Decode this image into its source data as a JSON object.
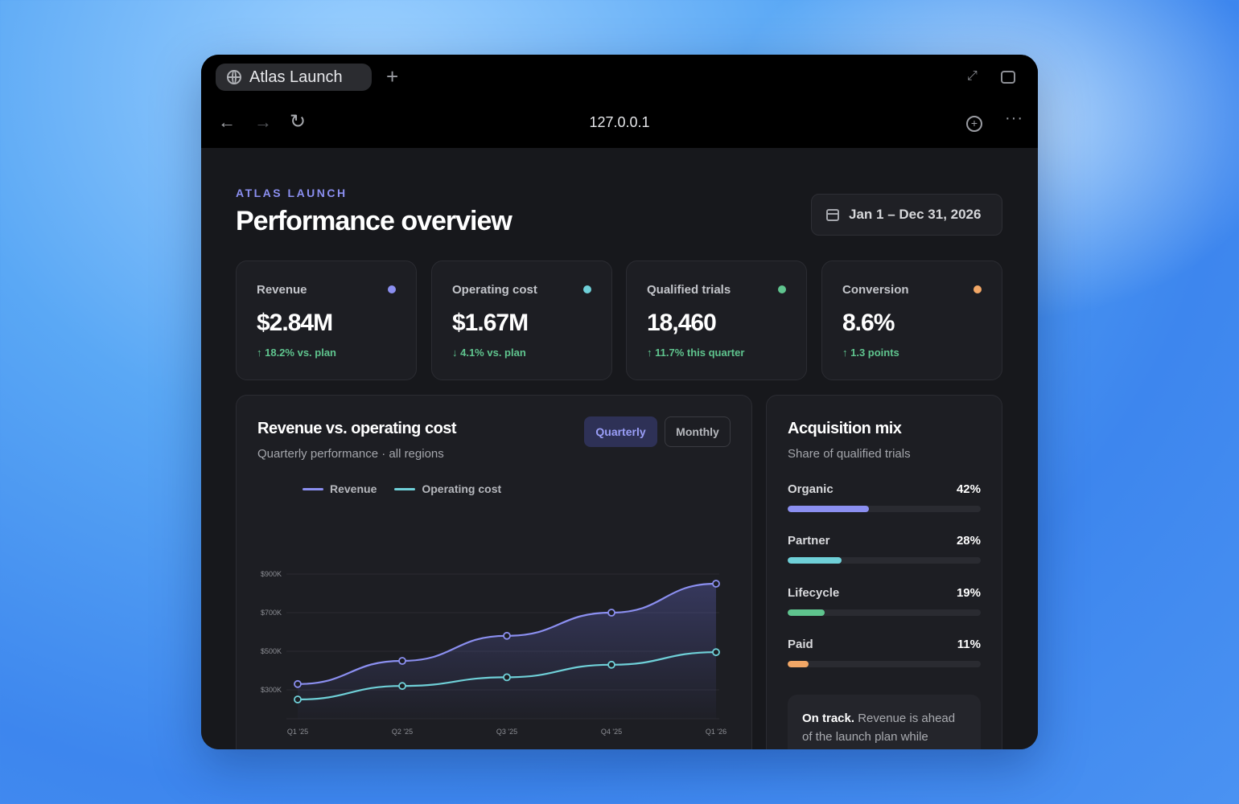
{
  "browser": {
    "tab_title": "Atlas Launch",
    "new_tab": "+",
    "url": "127.0.0.1"
  },
  "header": {
    "eyebrow": "ATLAS LAUNCH",
    "title": "Performance overview",
    "date_range": "Jan 1 – Dec 31, 2026"
  },
  "kpis": [
    {
      "label": "Revenue",
      "value": "$2.84M",
      "delta": "↑ 18.2% vs. plan",
      "color": "#8b8ff0"
    },
    {
      "label": "Operating cost",
      "value": "$1.67M",
      "delta": "↓ 4.1% vs. plan",
      "color": "#6fd0d8"
    },
    {
      "label": "Qualified trials",
      "value": "18,460",
      "delta": "↑ 11.7% this quarter",
      "color": "#5fc48e"
    },
    {
      "label": "Conversion",
      "value": "8.6%",
      "delta": "↑ 1.3 points",
      "color": "#f2a766"
    }
  ],
  "revenue_card": {
    "title": "Revenue vs. operating cost",
    "subtitle": "Quarterly performance · all regions",
    "toggle_quarterly": "Quarterly",
    "toggle_monthly": "Monthly",
    "legend_revenue": "Revenue",
    "legend_cost": "Operating cost"
  },
  "chart_data": {
    "type": "line",
    "categories": [
      "Q1 '25",
      "Q2 '25",
      "Q3 '25",
      "Q4 '25",
      "Q1 '26"
    ],
    "series": [
      {
        "name": "Revenue",
        "values": [
          330000,
          450000,
          580000,
          700000,
          850000
        ],
        "color": "#8b8ff0"
      },
      {
        "name": "Operating cost",
        "values": [
          250000,
          320000,
          365000,
          430000,
          495000
        ],
        "color": "#6fd0d8"
      }
    ],
    "y_ticks": [
      {
        "value": 900000,
        "label": "$900K"
      },
      {
        "value": 700000,
        "label": "$700K"
      },
      {
        "value": 500000,
        "label": "$500K"
      },
      {
        "value": 300000,
        "label": "$300K"
      }
    ],
    "ylim": [
      150000,
      900000
    ],
    "grid": true,
    "legend": "top-left"
  },
  "acquisition": {
    "title": "Acquisition mix",
    "subtitle": "Share of qualified trials",
    "items": [
      {
        "name": "Organic",
        "pct_label": "42%",
        "value": 42,
        "color": "#8b8ff0"
      },
      {
        "name": "Partner",
        "pct_label": "28%",
        "value": 28,
        "color": "#6fd0d8"
      },
      {
        "name": "Lifecycle",
        "pct_label": "19%",
        "value": 19,
        "color": "#5fc48e"
      },
      {
        "name": "Paid",
        "pct_label": "11%",
        "value": 11,
        "color": "#f2a766"
      }
    ],
    "note_bold": "On track.",
    "note_text": " Revenue is ahead of the launch plan while"
  }
}
